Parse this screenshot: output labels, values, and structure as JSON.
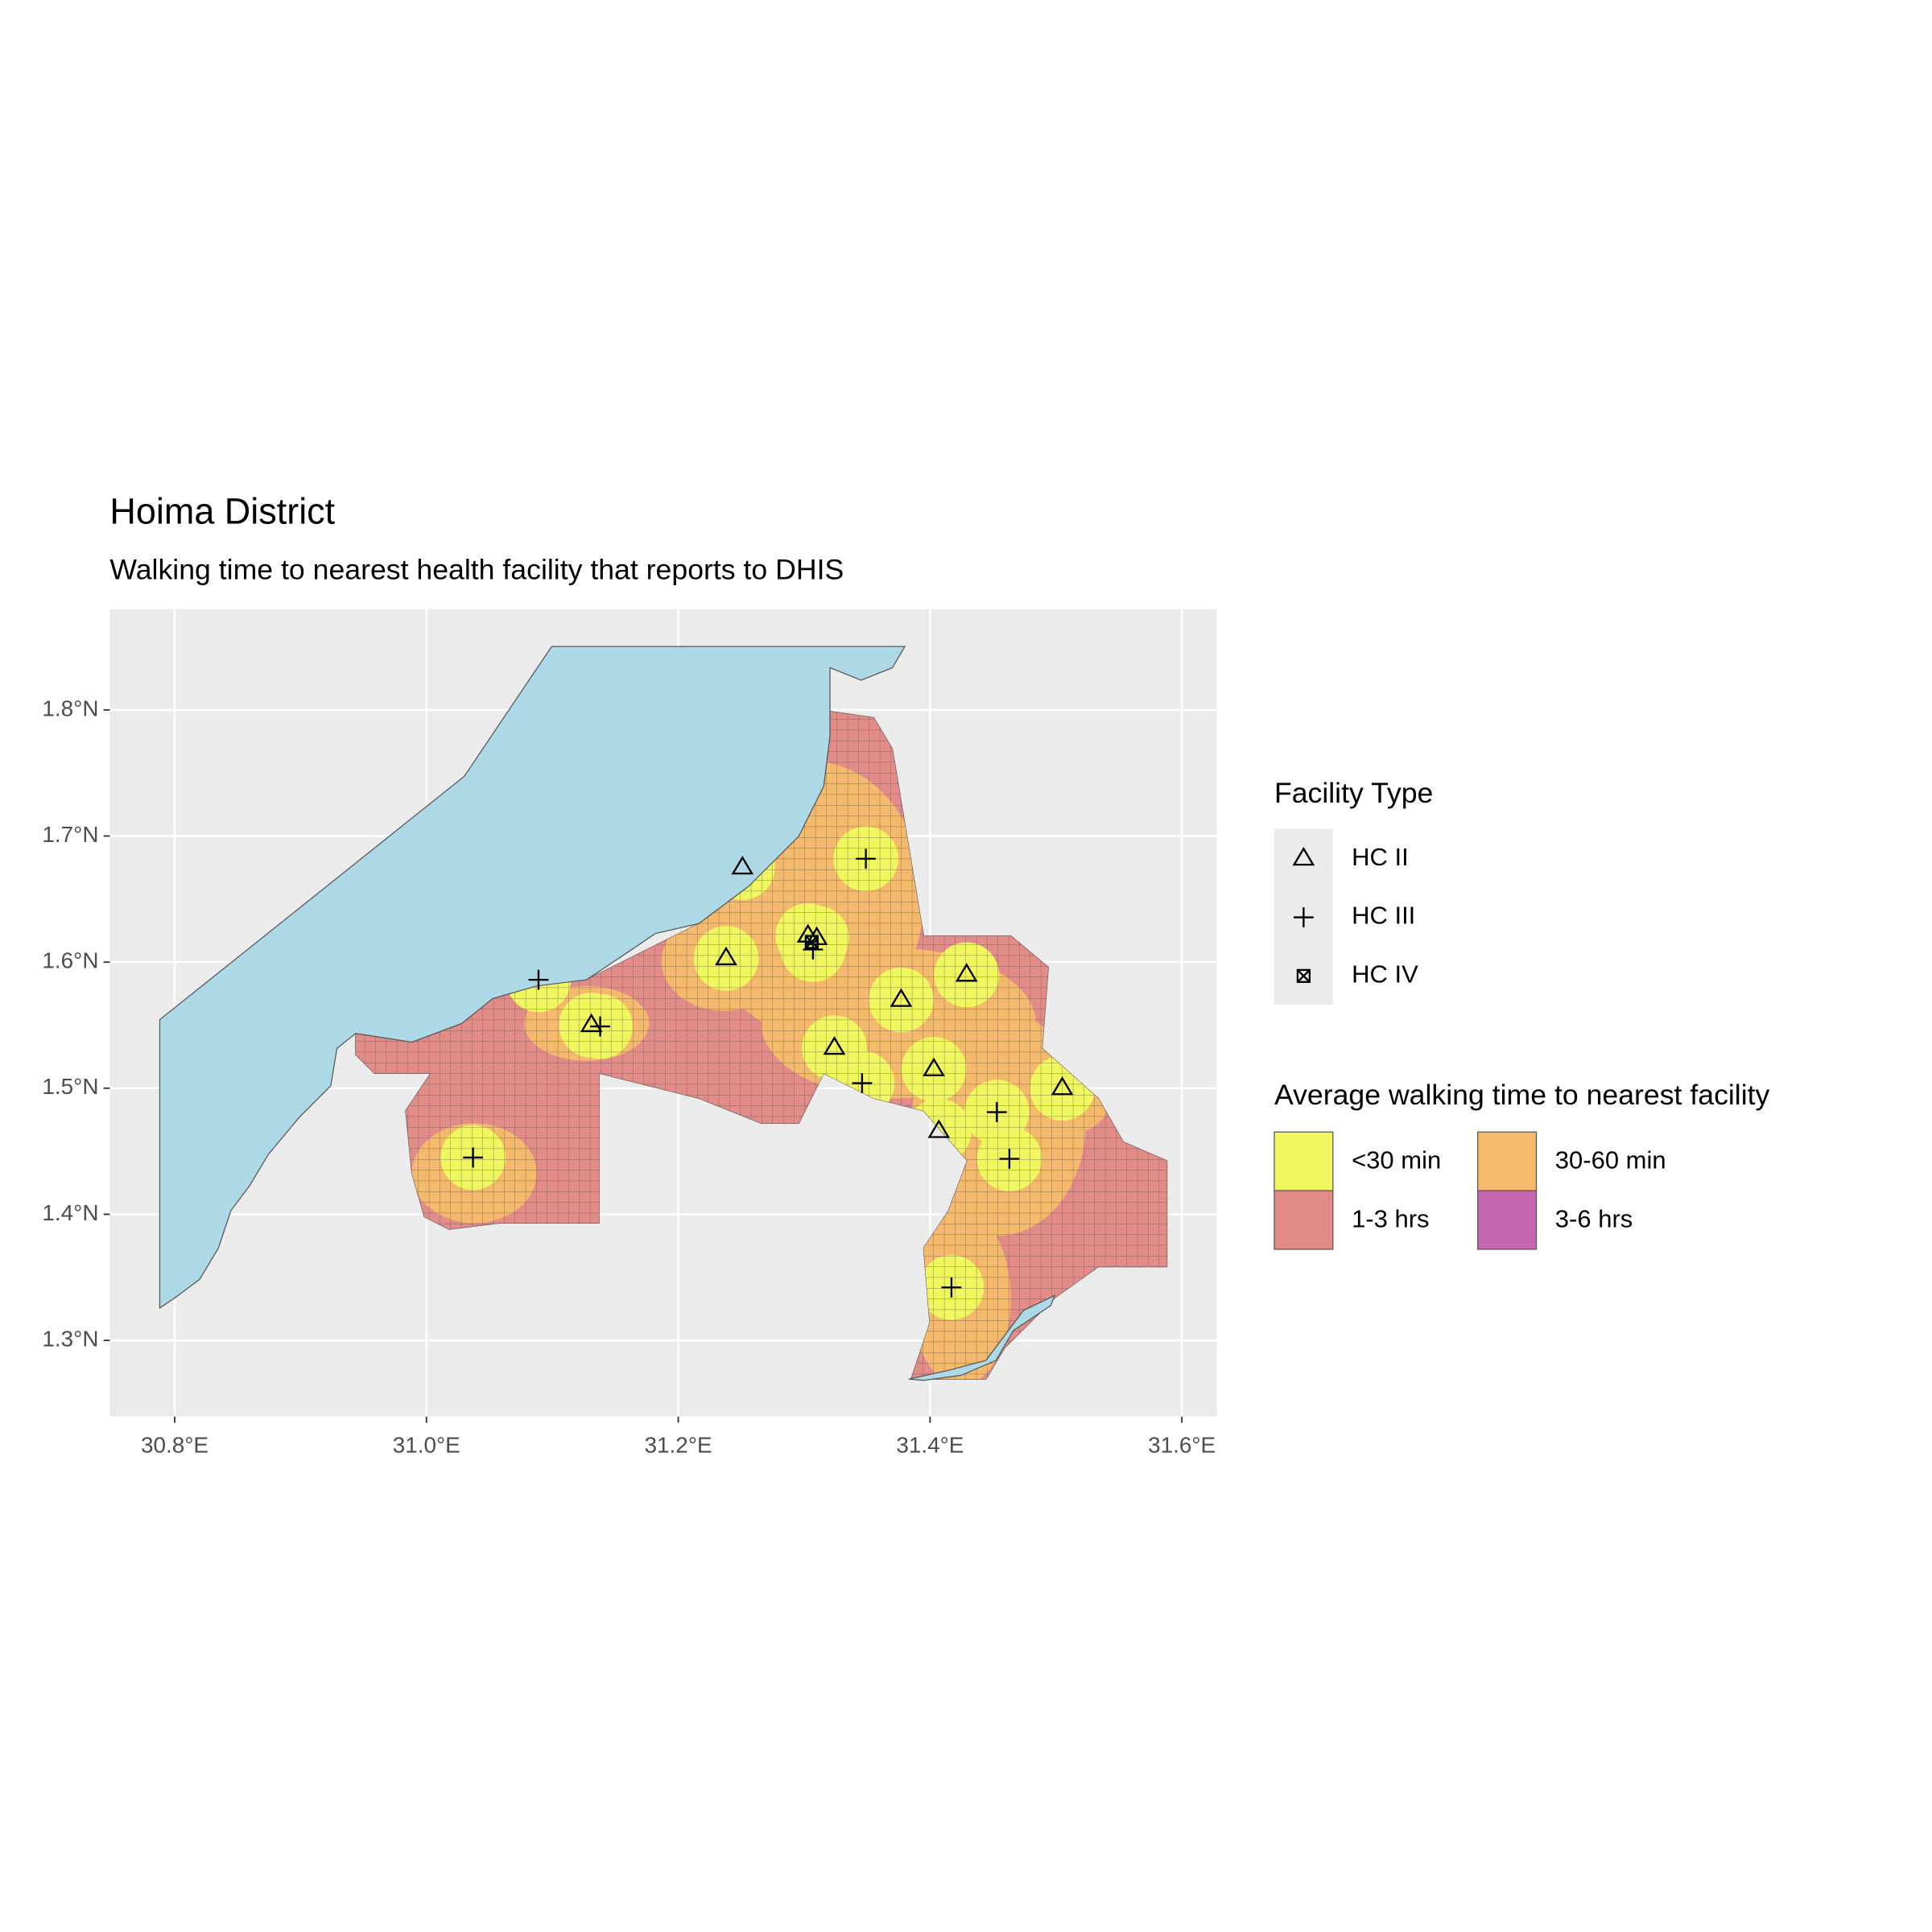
{
  "chart_data": {
    "type": "scatter",
    "title": "Hoima District",
    "subtitle": "Walking time to nearest health facility that reports to DHIS",
    "xlim": [
      30.7485,
      31.6278
    ],
    "ylim": [
      1.2396,
      1.88
    ],
    "xticks": [
      {
        "value": 30.8,
        "label": "30.8°E"
      },
      {
        "value": 31.0,
        "label": "31.0°E"
      },
      {
        "value": 31.2,
        "label": "31.2°E"
      },
      {
        "value": 31.4,
        "label": "31.4°E"
      },
      {
        "value": 31.6,
        "label": "31.6°E"
      }
    ],
    "yticks": [
      {
        "value": 1.3,
        "label": "1.3°N"
      },
      {
        "value": 1.4,
        "label": "1.4°N"
      },
      {
        "value": 1.5,
        "label": "1.5°N"
      },
      {
        "value": 1.6,
        "label": "1.6°N"
      },
      {
        "value": 1.7,
        "label": "1.7°N"
      },
      {
        "value": 1.8,
        "label": "1.8°N"
      }
    ],
    "grid": true,
    "legend_title": "Facility Type",
    "series": [
      {
        "name": "HC II",
        "shape": "triangle",
        "color": "#000000",
        "x": [
          31.251,
          31.238,
          31.303,
          31.31,
          31.131,
          31.324,
          31.377,
          31.429,
          31.403,
          31.407,
          31.505
        ],
        "y": [
          1.675,
          1.603,
          1.621,
          1.619,
          1.55,
          1.532,
          1.57,
          1.59,
          1.515,
          1.466,
          1.5
        ]
      },
      {
        "name": "HC III",
        "shape": "cross",
        "color": "#000000",
        "x": [
          31.349,
          31.089,
          31.138,
          31.307,
          31.346,
          31.453,
          31.463,
          31.037,
          31.417
        ],
        "y": [
          1.682,
          1.586,
          1.549,
          1.61,
          1.504,
          1.481,
          1.444,
          1.445,
          1.342
        ]
      },
      {
        "name": "HC IV",
        "shape": "boxx",
        "color": "#000000",
        "x": [
          31.306
        ],
        "y": [
          1.616
        ]
      }
    ],
    "fill_legend": {
      "title": "Average walking time to nearest facility",
      "items": [
        {
          "label": "<30 min",
          "color": "#eff65e"
        },
        {
          "label": "30-60 min",
          "color": "#f5b96b"
        },
        {
          "label": "1-3 hrs",
          "color": "#e38b87"
        },
        {
          "label": "3-6 hrs",
          "color": "#c466b0"
        }
      ]
    }
  }
}
